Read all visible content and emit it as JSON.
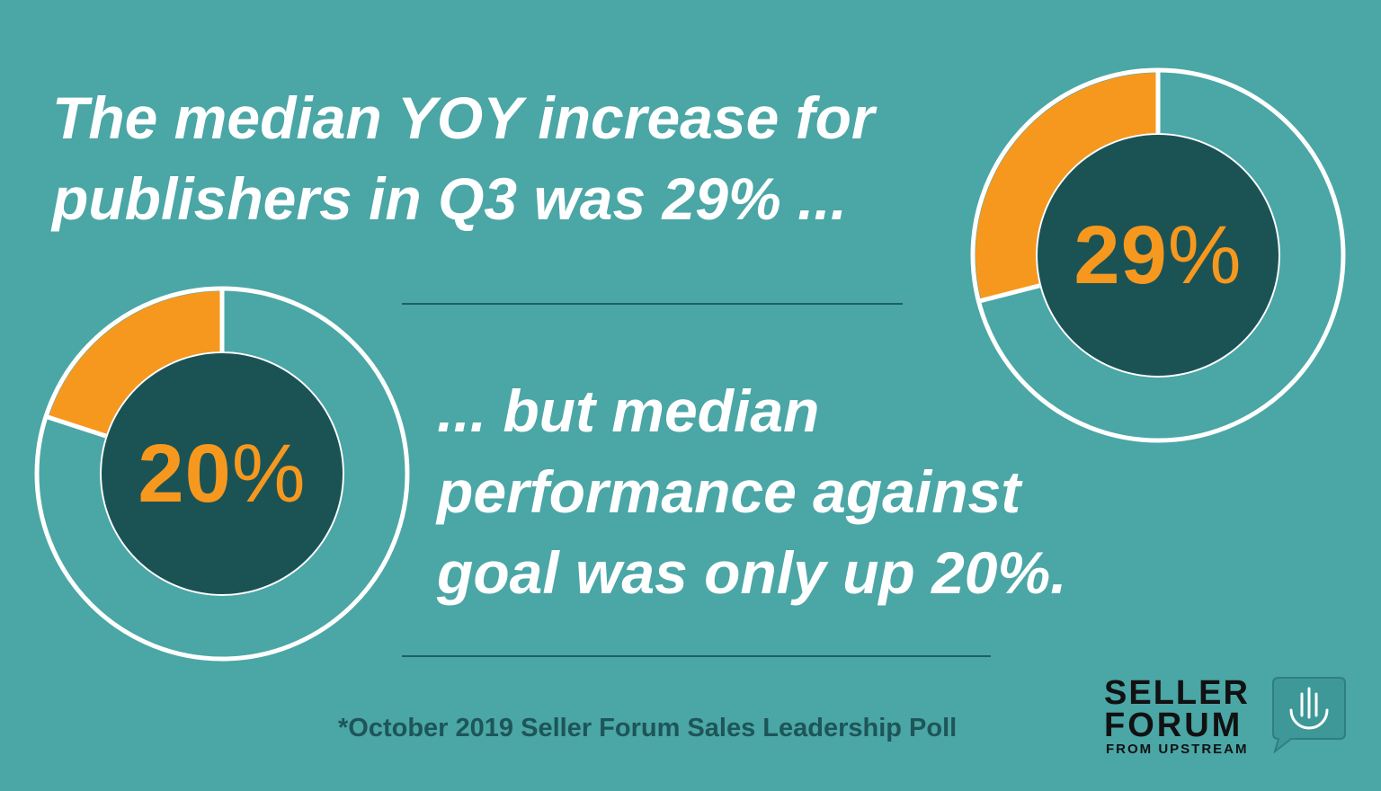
{
  "headline": {
    "line1": "The median YOY increase for",
    "line2": "publishers in Q3 was 29% ..."
  },
  "subline": {
    "line1": "... but median",
    "line2": "performance against",
    "line3": "goal was only up 20%."
  },
  "footnote": "*October 2019 Seller Forum Sales Leadership Poll",
  "logo": {
    "line1": "SELLER",
    "line2": "FORUM",
    "line3": "FROM UPSTREAM"
  },
  "colors": {
    "background": "#4ba6a6",
    "accent": "#f7981e",
    "inner_circle": "#1b5355",
    "ring_remainder": "#4ba6a6",
    "ring_outline": "#ffffff",
    "text": "#ffffff"
  },
  "chart_data": [
    {
      "type": "pie",
      "variant": "donut",
      "value": 29,
      "max": 100,
      "label_number": "29",
      "label_symbol": "%",
      "colors": {
        "filled": "#f7981e",
        "remainder": "#4ba6a6"
      }
    },
    {
      "type": "pie",
      "variant": "donut",
      "value": 20,
      "max": 100,
      "label_number": "20",
      "label_symbol": "%",
      "colors": {
        "filled": "#f7981e",
        "remainder": "#4ba6a6"
      }
    }
  ]
}
